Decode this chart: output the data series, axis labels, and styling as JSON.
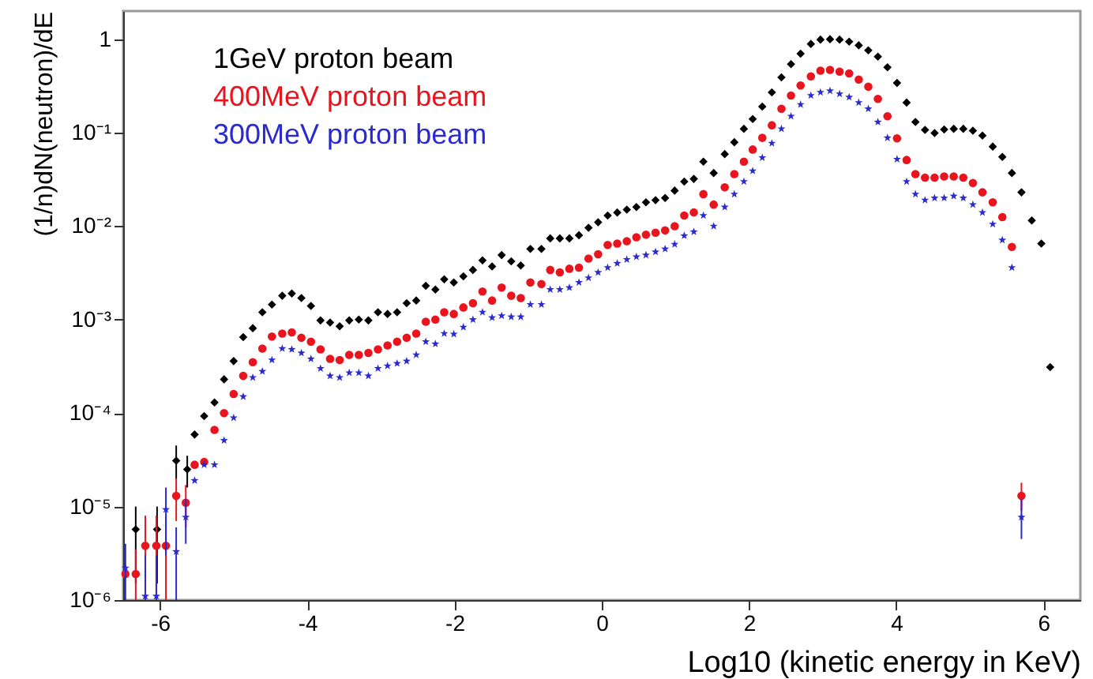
{
  "chart_data": {
    "type": "scatter",
    "xlabel": "Log10 (kinetic energy in KeV)",
    "ylabel": "(1/n)dN(neutron)/dE",
    "log": "y",
    "grid": false,
    "legend": "top left",
    "xlim": [
      -6.5,
      6.5
    ],
    "xticks": [
      -6,
      -4,
      -2,
      0,
      2,
      4,
      6
    ],
    "ylim": [
      1e-06,
      2
    ],
    "yticks": [
      {
        "value": 1e-06,
        "label": "10⁻⁶"
      },
      {
        "value": 1e-05,
        "label": "10⁻⁵"
      },
      {
        "value": 0.0001,
        "label": "10⁻⁴"
      },
      {
        "value": 0.001,
        "label": "10⁻³"
      },
      {
        "value": 0.01,
        "label": "10⁻²"
      },
      {
        "value": 0.1,
        "label": "10⁻¹"
      },
      1
    ],
    "series": [
      {
        "name": "1GeV proton beam",
        "color": "#000000",
        "marker": "diamond",
        "x": [
          -6.33,
          -6.04,
          -5.78,
          -5.63,
          -5.53,
          -5.4,
          -5.26,
          -5.13,
          -5.0,
          -4.87,
          -4.74,
          -4.61,
          -4.48,
          -4.34,
          -4.21,
          -4.08,
          -3.95,
          -3.82,
          -3.69,
          -3.56,
          -3.43,
          -3.3,
          -3.17,
          -3.04,
          -2.91,
          -2.78,
          -2.65,
          -2.52,
          -2.39,
          -2.26,
          -2.14,
          -2.01,
          -1.88,
          -1.75,
          -1.62,
          -1.49,
          -1.36,
          -1.23,
          -1.1,
          -0.97,
          -0.82,
          -0.7,
          -0.57,
          -0.44,
          -0.31,
          -0.18,
          -0.05,
          0.08,
          0.21,
          0.34,
          0.47,
          0.6,
          0.73,
          0.86,
          0.99,
          1.12,
          1.25,
          1.38,
          1.52,
          1.67,
          1.8,
          1.93,
          2.05,
          2.18,
          2.31,
          2.44,
          2.57,
          2.7,
          2.84,
          2.97,
          3.1,
          3.23,
          3.36,
          3.49,
          3.62,
          3.75,
          3.88,
          4.01,
          4.14,
          4.26,
          4.39,
          4.52,
          4.65,
          4.78,
          4.91,
          5.04,
          5.17,
          5.31,
          5.44,
          5.57,
          5.7,
          5.84,
          5.97,
          6.09
        ],
        "values": [
          5.7e-06,
          5.7e-06,
          3.1e-05,
          2.5e-05,
          5.9e-05,
          9.3e-05,
          0.00013,
          0.00023,
          0.00036,
          0.00065,
          0.00081,
          0.0012,
          0.00145,
          0.0018,
          0.0019,
          0.0017,
          0.0014,
          0.00098,
          0.00093,
          0.00085,
          0.00098,
          0.001,
          0.00098,
          0.0012,
          0.00115,
          0.0012,
          0.0015,
          0.0016,
          0.0023,
          0.0021,
          0.0027,
          0.0025,
          0.0029,
          0.0034,
          0.0043,
          0.0037,
          0.0049,
          0.0042,
          0.0038,
          0.0057,
          0.0057,
          0.0074,
          0.0074,
          0.0074,
          0.008,
          0.0096,
          0.011,
          0.013,
          0.014,
          0.015,
          0.016,
          0.018,
          0.019,
          0.02,
          0.024,
          0.03,
          0.032,
          0.049,
          0.037,
          0.059,
          0.079,
          0.11,
          0.14,
          0.19,
          0.27,
          0.39,
          0.54,
          0.7,
          0.89,
          0.99,
          1.0,
          0.99,
          0.94,
          0.86,
          0.76,
          0.65,
          0.5,
          0.34,
          0.21,
          0.13,
          0.107,
          0.099,
          0.108,
          0.11,
          0.11,
          0.105,
          0.093,
          0.071,
          0.055,
          0.037,
          0.023,
          0.0115,
          0.0065,
          0.00031
        ],
        "errors": [
          [
            1.5e-06,
            1e-05
          ],
          [
            1.5e-06,
            1e-05
          ],
          [
            2e-05,
            4.5e-05
          ],
          [
            1.6e-05,
            3.5e-05
          ],
          null,
          null,
          null,
          null,
          null,
          null,
          null,
          null,
          null,
          null,
          null,
          null,
          null,
          null,
          null,
          null,
          null,
          null,
          null,
          null,
          null,
          null,
          null,
          null,
          null,
          null,
          null,
          null,
          null,
          null,
          null,
          null,
          null,
          null,
          null,
          null,
          null,
          null,
          null,
          null,
          null,
          null,
          null,
          null,
          null,
          null,
          null,
          null,
          null,
          null,
          null,
          null,
          null,
          null,
          null,
          null,
          null,
          null,
          null,
          null,
          null,
          null,
          null,
          null,
          null,
          null,
          null,
          null,
          null,
          null,
          null,
          null,
          null,
          null,
          null,
          null,
          null,
          null,
          null,
          null,
          null,
          null,
          null,
          null,
          null,
          null,
          null,
          null,
          null,
          null
        ]
      },
      {
        "name": "400MeV proton beam",
        "color": "#e8141e",
        "marker": "circle",
        "x": [
          -6.47,
          -6.33,
          -6.2,
          -6.05,
          -5.92,
          -5.78,
          -5.65,
          -5.53,
          -5.4,
          -5.26,
          -5.13,
          -5.0,
          -4.87,
          -4.74,
          -4.61,
          -4.48,
          -4.34,
          -4.21,
          -4.08,
          -3.95,
          -3.82,
          -3.69,
          -3.56,
          -3.43,
          -3.3,
          -3.17,
          -3.04,
          -2.91,
          -2.78,
          -2.65,
          -2.52,
          -2.39,
          -2.26,
          -2.14,
          -2.01,
          -1.88,
          -1.75,
          -1.62,
          -1.49,
          -1.36,
          -1.23,
          -1.1,
          -0.97,
          -0.82,
          -0.7,
          -0.57,
          -0.44,
          -0.31,
          -0.18,
          -0.05,
          0.08,
          0.21,
          0.34,
          0.47,
          0.6,
          0.73,
          0.86,
          0.99,
          1.12,
          1.25,
          1.38,
          1.52,
          1.67,
          1.8,
          1.93,
          2.05,
          2.18,
          2.31,
          2.44,
          2.57,
          2.7,
          2.84,
          2.97,
          3.1,
          3.23,
          3.36,
          3.49,
          3.62,
          3.75,
          3.88,
          4.01,
          4.14,
          4.26,
          4.39,
          4.52,
          4.65,
          4.78,
          4.91,
          5.04,
          5.17,
          5.31,
          5.44,
          5.57,
          5.7
        ],
        "values": [
          1.9e-06,
          1.9e-06,
          3.8e-06,
          3.8e-06,
          3.8e-06,
          1.3e-05,
          1.1e-05,
          2.8e-05,
          3e-05,
          6.6e-05,
          0.0001,
          0.00016,
          0.00025,
          0.00035,
          0.00049,
          0.00066,
          0.00071,
          0.00073,
          0.00064,
          0.00058,
          0.00048,
          0.00038,
          0.00037,
          0.00042,
          0.00042,
          0.00044,
          0.00048,
          0.00053,
          0.00058,
          0.00064,
          0.00071,
          0.00095,
          0.001,
          0.0012,
          0.00115,
          0.00135,
          0.0015,
          0.002,
          0.0016,
          0.0022,
          0.0018,
          0.0017,
          0.0025,
          0.0024,
          0.0034,
          0.0032,
          0.0035,
          0.0036,
          0.0045,
          0.005,
          0.0063,
          0.0065,
          0.0069,
          0.0076,
          0.0081,
          0.0085,
          0.009,
          0.01,
          0.013,
          0.014,
          0.022,
          0.017,
          0.026,
          0.036,
          0.049,
          0.066,
          0.088,
          0.12,
          0.18,
          0.25,
          0.32,
          0.4,
          0.46,
          0.47,
          0.45,
          0.43,
          0.37,
          0.31,
          0.23,
          0.15,
          0.087,
          0.051,
          0.036,
          0.033,
          0.033,
          0.034,
          0.034,
          0.033,
          0.029,
          0.023,
          0.018,
          0.0125,
          0.006,
          1.3e-05
        ],
        "errors": [
          null,
          [
            1e-06,
            3.5e-06
          ],
          [
            1e-06,
            8e-06
          ],
          [
            1e-06,
            8e-06
          ],
          [
            1e-06,
            8e-06
          ],
          [
            7e-06,
            2e-05
          ],
          [
            6e-06,
            1.7e-05
          ],
          null,
          null,
          null,
          null,
          null,
          null,
          null,
          null,
          null,
          null,
          null,
          null,
          null,
          null,
          null,
          null,
          null,
          null,
          null,
          null,
          null,
          null,
          null,
          null,
          null,
          null,
          null,
          null,
          null,
          null,
          null,
          null,
          null,
          null,
          null,
          null,
          null,
          null,
          null,
          null,
          null,
          null,
          null,
          null,
          null,
          null,
          null,
          null,
          null,
          null,
          null,
          null,
          null,
          null,
          null,
          null,
          null,
          null,
          null,
          null,
          null,
          null,
          null,
          null,
          null,
          null,
          null,
          null,
          null,
          null,
          null,
          null,
          null,
          null,
          null,
          null,
          null,
          null,
          null,
          null,
          null,
          null,
          null,
          null,
          null,
          null,
          [
            9e-06,
            1.8e-05
          ]
        ]
      },
      {
        "name": "300MeV proton beam",
        "color": "#2a2ad0",
        "marker": "star",
        "x": [
          -6.47,
          -6.2,
          -6.05,
          -5.92,
          -5.78,
          -5.65,
          -5.53,
          -5.4,
          -5.26,
          -5.13,
          -5.0,
          -4.87,
          -4.74,
          -4.61,
          -4.48,
          -4.34,
          -4.21,
          -4.08,
          -3.95,
          -3.82,
          -3.69,
          -3.56,
          -3.43,
          -3.3,
          -3.17,
          -3.04,
          -2.91,
          -2.78,
          -2.65,
          -2.52,
          -2.39,
          -2.26,
          -2.14,
          -2.01,
          -1.88,
          -1.75,
          -1.62,
          -1.49,
          -1.36,
          -1.23,
          -1.1,
          -0.97,
          -0.82,
          -0.7,
          -0.57,
          -0.44,
          -0.31,
          -0.18,
          -0.05,
          0.08,
          0.21,
          0.34,
          0.47,
          0.6,
          0.73,
          0.86,
          0.99,
          1.12,
          1.25,
          1.38,
          1.52,
          1.67,
          1.8,
          1.93,
          2.05,
          2.18,
          2.31,
          2.44,
          2.57,
          2.7,
          2.84,
          2.97,
          3.1,
          3.23,
          3.36,
          3.49,
          3.62,
          3.75,
          3.88,
          4.01,
          4.14,
          4.26,
          4.39,
          4.52,
          4.65,
          4.78,
          4.91,
          5.04,
          5.17,
          5.31,
          5.44,
          5.57,
          5.7
        ],
        "values": [
          2.2e-06,
          1.1e-06,
          1.1e-06,
          9.3e-06,
          3.3e-06,
          7.7e-06,
          1.9e-05,
          2.8e-05,
          2.8e-05,
          5.1e-05,
          8.9e-05,
          0.00015,
          0.00024,
          0.00028,
          0.00037,
          0.00049,
          0.00048,
          0.00044,
          0.00038,
          0.0003,
          0.00025,
          0.00024,
          0.00027,
          0.00027,
          0.00025,
          0.0003,
          0.00032,
          0.00034,
          0.00036,
          0.00042,
          0.00058,
          0.00055,
          0.00071,
          0.0007,
          0.00083,
          0.001,
          0.0012,
          0.00105,
          0.0011,
          0.00107,
          0.00107,
          0.00145,
          0.00145,
          0.0021,
          0.0021,
          0.0022,
          0.0025,
          0.0028,
          0.0032,
          0.0036,
          0.004,
          0.0044,
          0.0047,
          0.0049,
          0.0053,
          0.0057,
          0.0064,
          0.0079,
          0.0087,
          0.013,
          0.01,
          0.016,
          0.022,
          0.03,
          0.039,
          0.054,
          0.077,
          0.11,
          0.15,
          0.2,
          0.25,
          0.27,
          0.28,
          0.26,
          0.24,
          0.21,
          0.18,
          0.13,
          0.088,
          0.052,
          0.03,
          0.022,
          0.019,
          0.02,
          0.02,
          0.021,
          0.02,
          0.017,
          0.014,
          0.0105,
          0.0071,
          0.0036,
          7.7e-06
        ],
        "errors": [
          [
            1e-06,
            4e-06
          ],
          [
            1e-06,
            3e-06
          ],
          [
            1e-06,
            3e-06
          ],
          [
            3e-06,
            1.6e-05
          ],
          [
            1e-06,
            6e-06
          ],
          [
            4e-06,
            1.2e-05
          ],
          null,
          null,
          null,
          null,
          null,
          null,
          null,
          null,
          null,
          null,
          null,
          null,
          null,
          null,
          null,
          null,
          null,
          null,
          null,
          null,
          null,
          null,
          null,
          null,
          null,
          null,
          null,
          null,
          null,
          null,
          null,
          null,
          null,
          null,
          null,
          null,
          null,
          null,
          null,
          null,
          null,
          null,
          null,
          null,
          null,
          null,
          null,
          null,
          null,
          null,
          null,
          null,
          null,
          null,
          null,
          null,
          null,
          null,
          null,
          null,
          null,
          null,
          null,
          null,
          null,
          null,
          null,
          null,
          null,
          null,
          null,
          null,
          null,
          null,
          null,
          null,
          null,
          null,
          null,
          null,
          null,
          null,
          null,
          null,
          null,
          null,
          [
            4.5e-06,
            1.2e-05
          ]
        ]
      }
    ]
  }
}
